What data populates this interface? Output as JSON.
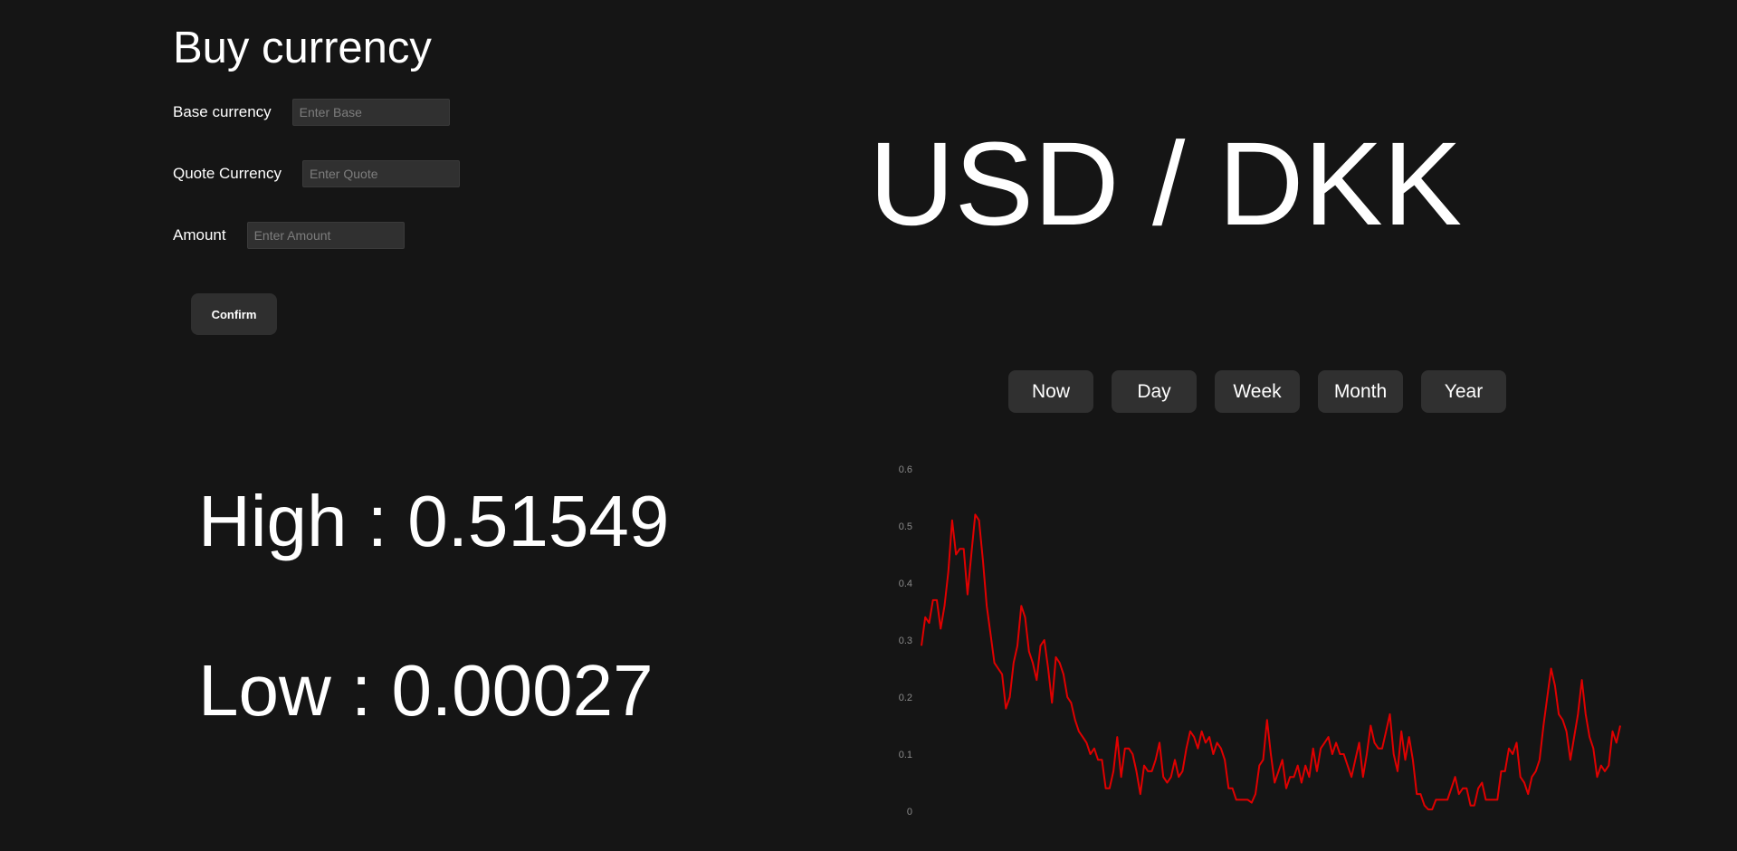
{
  "form": {
    "title": "Buy currency",
    "base_label": "Base currency",
    "base_placeholder": "Enter Base",
    "quote_label": "Quote Currency",
    "quote_placeholder": "Enter Quote",
    "amount_label": "Amount",
    "amount_placeholder": "Enter Amount",
    "confirm_label": "Confirm"
  },
  "pair": {
    "title": "USD / DKK"
  },
  "stats": {
    "high_text": "High : 0.51549",
    "low_text": "Low : 0.00027"
  },
  "ranges": [
    {
      "label": "Now"
    },
    {
      "label": "Day"
    },
    {
      "label": "Week"
    },
    {
      "label": "Month"
    },
    {
      "label": "Year"
    }
  ],
  "colors": {
    "background": "#151515",
    "line": "#e00000",
    "tick": "#8a8a8a"
  },
  "chart_data": {
    "type": "line",
    "ylim": [
      0,
      0.6
    ],
    "yticks": [
      "0",
      "0.1",
      "0.2",
      "0.3",
      "0.4",
      "0.5",
      "0.6"
    ],
    "grid": false,
    "series": [
      {
        "values": [
          0.29,
          0.34,
          0.33,
          0.37,
          0.37,
          0.32,
          0.36,
          0.42,
          0.51,
          0.45,
          0.46,
          0.46,
          0.38,
          0.45,
          0.52,
          0.51,
          0.44,
          0.36,
          0.31,
          0.26,
          0.25,
          0.24,
          0.18,
          0.2,
          0.26,
          0.29,
          0.36,
          0.34,
          0.28,
          0.26,
          0.23,
          0.29,
          0.3,
          0.25,
          0.19,
          0.27,
          0.26,
          0.24,
          0.2,
          0.19,
          0.16,
          0.14,
          0.13,
          0.12,
          0.1,
          0.11,
          0.09,
          0.09,
          0.04,
          0.04,
          0.07,
          0.13,
          0.06,
          0.11,
          0.11,
          0.1,
          0.07,
          0.03,
          0.08,
          0.07,
          0.07,
          0.09,
          0.12,
          0.06,
          0.05,
          0.06,
          0.09,
          0.06,
          0.07,
          0.11,
          0.14,
          0.13,
          0.11,
          0.14,
          0.12,
          0.13,
          0.1,
          0.12,
          0.11,
          0.09,
          0.04,
          0.04,
          0.02,
          0.02,
          0.02,
          0.02,
          0.015,
          0.03,
          0.08,
          0.09,
          0.16,
          0.1,
          0.05,
          0.07,
          0.09,
          0.04,
          0.06,
          0.06,
          0.08,
          0.05,
          0.08,
          0.06,
          0.11,
          0.07,
          0.11,
          0.12,
          0.13,
          0.1,
          0.12,
          0.1,
          0.1,
          0.08,
          0.06,
          0.09,
          0.12,
          0.06,
          0.1,
          0.15,
          0.12,
          0.11,
          0.11,
          0.14,
          0.17,
          0.1,
          0.07,
          0.14,
          0.09,
          0.13,
          0.09,
          0.03,
          0.03,
          0.01,
          0.003,
          0.003,
          0.02,
          0.02,
          0.02,
          0.02,
          0.04,
          0.06,
          0.03,
          0.04,
          0.04,
          0.01,
          0.01,
          0.04,
          0.05,
          0.02,
          0.02,
          0.02,
          0.02,
          0.07,
          0.07,
          0.11,
          0.1,
          0.12,
          0.06,
          0.05,
          0.03,
          0.06,
          0.07,
          0.09,
          0.15,
          0.2,
          0.25,
          0.22,
          0.17,
          0.16,
          0.14,
          0.09,
          0.13,
          0.17,
          0.23,
          0.17,
          0.13,
          0.11,
          0.06,
          0.08,
          0.07,
          0.08,
          0.14,
          0.12,
          0.15
        ]
      }
    ]
  }
}
